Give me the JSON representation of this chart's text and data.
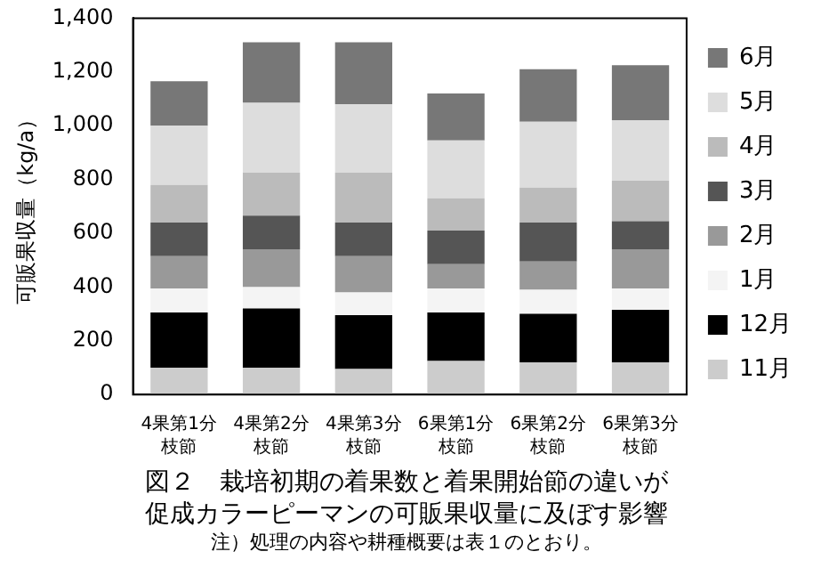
{
  "chart_data": {
    "type": "bar",
    "stacked": true,
    "title": "図２　栽培初期の着果数と着果開始節の違いが促成カラーピーマンの可販果収量に及ぼす影響",
    "ylabel": "可販果収量（kg/a）",
    "annotations": [
      "注）処理の内容や耕種概要は表１のとおり。"
    ],
    "categories": [
      "4果第1分枝節",
      "4果第2分枝節",
      "4果第3分枝節",
      "6果第1分枝節",
      "6果第2分枝節",
      "6果第3分枝節"
    ],
    "series": [
      {
        "name": "11月",
        "color": "#cccccc",
        "values": [
          100,
          100,
          95,
          125,
          120,
          120
        ]
      },
      {
        "name": "12月",
        "color": "#000000",
        "values": [
          205,
          220,
          200,
          180,
          180,
          195
        ]
      },
      {
        "name": "1月",
        "color": "#f4f4f4",
        "values": [
          90,
          80,
          85,
          90,
          90,
          80
        ]
      },
      {
        "name": "2月",
        "color": "#999999",
        "values": [
          120,
          140,
          135,
          90,
          105,
          145
        ]
      },
      {
        "name": "3月",
        "color": "#555555",
        "values": [
          125,
          125,
          125,
          125,
          145,
          105
        ]
      },
      {
        "name": "4月",
        "color": "#bbbbbb",
        "values": [
          140,
          160,
          185,
          120,
          130,
          150
        ]
      },
      {
        "name": "5月",
        "color": "#dddddd",
        "values": [
          220,
          260,
          255,
          215,
          245,
          225
        ]
      },
      {
        "name": "6月",
        "color": "#777777",
        "values": [
          165,
          225,
          230,
          175,
          195,
          205
        ]
      }
    ],
    "ylim": [
      0,
      1400
    ],
    "yticks": [
      0,
      200,
      400,
      600,
      800,
      {
        "value": 1000,
        "label": "1,000"
      },
      {
        "value": 1200,
        "label": "1,200"
      },
      {
        "value": 1400,
        "label": "1,400"
      }
    ],
    "grid": false,
    "legend": "right"
  }
}
